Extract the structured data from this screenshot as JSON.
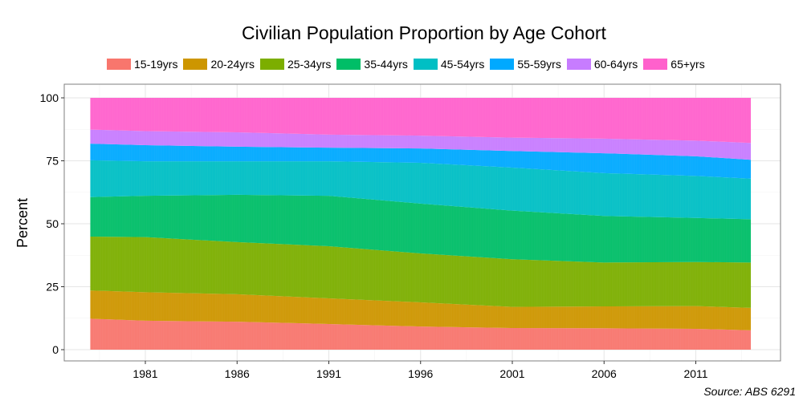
{
  "chart_data": {
    "type": "area",
    "stacked": true,
    "title": "Civilian Population Proportion by Age Cohort",
    "ylabel": "Percent",
    "xlabel": "",
    "ylim": [
      0,
      100
    ],
    "xlim": [
      1976.6,
      2015.6
    ],
    "yticks": [
      0,
      25,
      50,
      75,
      100
    ],
    "xticks": [
      1981,
      1986,
      1991,
      1996,
      2001,
      2006,
      2011
    ],
    "grid": true,
    "legend_position": "top",
    "caption": "Source: ABS 6291",
    "x": [
      1978,
      1981,
      1986,
      1991,
      1996,
      2001,
      2006,
      2011,
      2014
    ],
    "series": [
      {
        "name": "15-19yrs",
        "color": "#F8766D",
        "values": [
          12.3,
          11.5,
          11.1,
          10.2,
          9.2,
          8.6,
          8.5,
          8.3,
          7.7
        ]
      },
      {
        "name": "20-24yrs",
        "color": "#CD9600",
        "values": [
          11.2,
          11.3,
          10.9,
          10.2,
          9.6,
          8.4,
          8.7,
          9.0,
          8.9
        ]
      },
      {
        "name": "25-34yrs",
        "color": "#7CAE00",
        "values": [
          21.4,
          21.9,
          20.7,
          20.7,
          19.4,
          18.9,
          17.4,
          17.5,
          18.0
        ]
      },
      {
        "name": "35-44yrs",
        "color": "#00BE67",
        "values": [
          15.7,
          16.4,
          18.8,
          20.0,
          19.8,
          19.3,
          18.5,
          17.5,
          17.2
        ]
      },
      {
        "name": "45-54yrs",
        "color": "#00BFC4",
        "values": [
          14.6,
          13.7,
          13.3,
          13.7,
          16.2,
          17.1,
          17.0,
          16.7,
          16.1
        ]
      },
      {
        "name": "55-59yrs",
        "color": "#00A9FF",
        "values": [
          6.6,
          6.4,
          5.8,
          5.4,
          5.7,
          6.6,
          7.9,
          7.8,
          7.5
        ]
      },
      {
        "name": "60-64yrs",
        "color": "#C77CFF",
        "values": [
          5.6,
          5.6,
          5.7,
          5.2,
          5.1,
          5.3,
          5.8,
          6.2,
          6.7
        ]
      },
      {
        "name": "65+yrs",
        "color": "#FF61CC",
        "values": [
          12.6,
          13.2,
          13.7,
          14.6,
          15.0,
          15.8,
          16.2,
          17.0,
          17.9
        ]
      }
    ]
  }
}
